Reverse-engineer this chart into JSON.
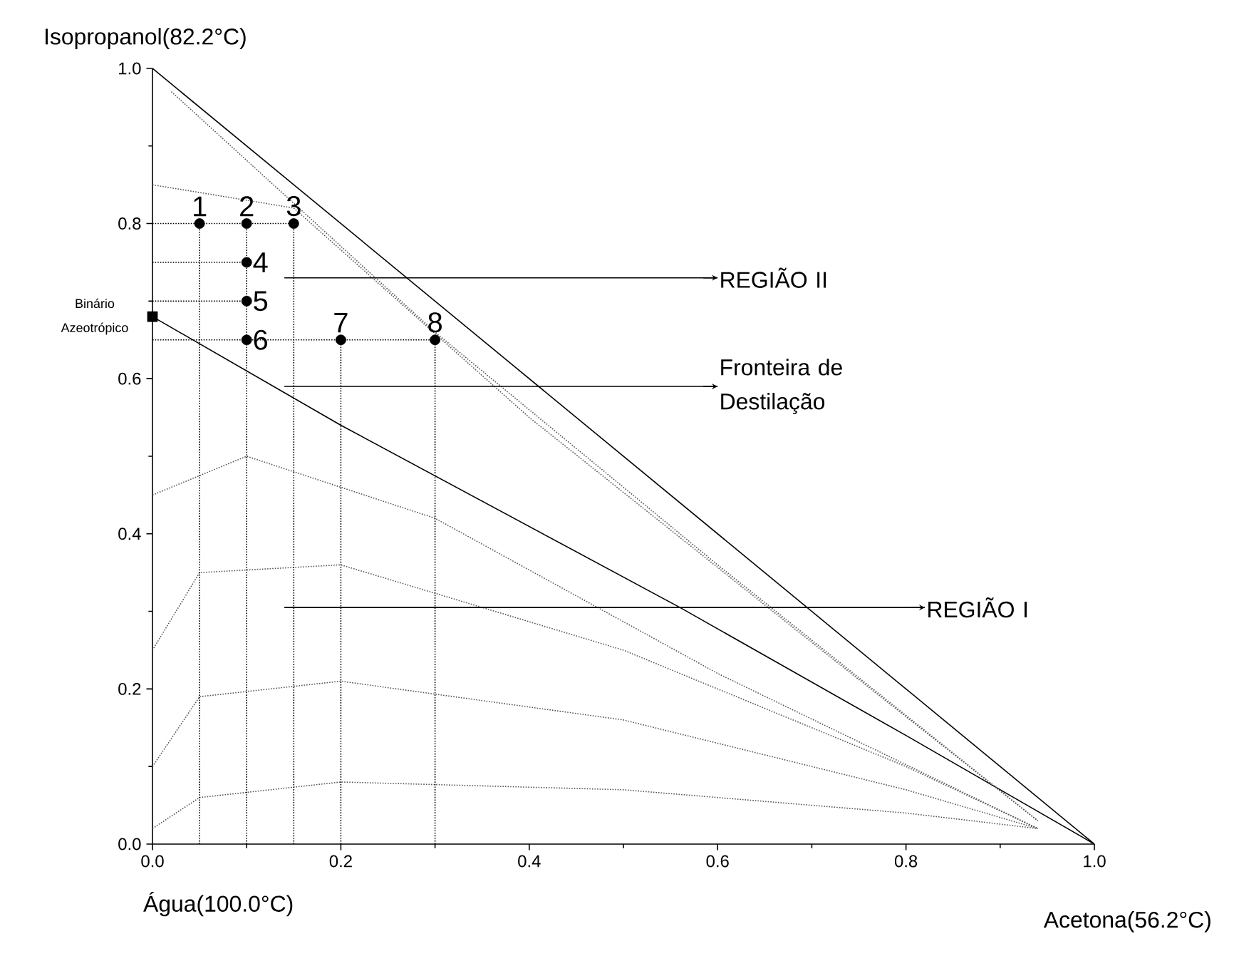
{
  "chart_data": {
    "type": "line",
    "xlabel": "Água(100.0°C)",
    "ylabel": "Isopropanol(82.2°C)",
    "xlim": [
      0,
      1
    ],
    "ylim": [
      0,
      1
    ],
    "xticks": [
      {
        "value": 0,
        "label": "0.0"
      },
      0.2,
      0.4,
      0.6,
      0.8,
      {
        "value": 1,
        "label": "1.0"
      }
    ],
    "yticks": [
      {
        "value": 0,
        "label": "0.0"
      },
      0.2,
      0.4,
      0.6,
      0.8,
      {
        "value": 1,
        "label": "1.0"
      }
    ],
    "series": [
      {
        "color": "#000000",
        "line_style": "solid",
        "x": [
          0,
          1
        ],
        "values": [
          1,
          0
        ]
      },
      {
        "color": "#000000",
        "line_style": "solid",
        "x": [
          0,
          0.2,
          0.56,
          0.8,
          1
        ],
        "values": [
          0.68,
          0.54,
          0.305,
          0.14,
          0
        ]
      },
      {
        "color": "#555555",
        "line_style": "dotted",
        "x": [
          0,
          0.05,
          0.2,
          0.5,
          0.8,
          0.94
        ],
        "values": [
          0.02,
          0.06,
          0.08,
          0.07,
          0.04,
          0.02
        ]
      },
      {
        "color": "#555555",
        "line_style": "dotted",
        "x": [
          0,
          0.05,
          0.2,
          0.5,
          0.8,
          0.94
        ],
        "values": [
          0.1,
          0.19,
          0.21,
          0.16,
          0.07,
          0.02
        ]
      },
      {
        "color": "#555555",
        "line_style": "dotted",
        "x": [
          0,
          0.05,
          0.2,
          0.5,
          0.8,
          0.94
        ],
        "values": [
          0.25,
          0.35,
          0.36,
          0.25,
          0.1,
          0.02
        ]
      },
      {
        "color": "#555555",
        "line_style": "dotted",
        "x": [
          0,
          0.1,
          0.3,
          0.6,
          0.94
        ],
        "values": [
          0.45,
          0.5,
          0.42,
          0.22,
          0.02
        ]
      },
      {
        "color": "#555555",
        "line_style": "dotted",
        "x": [
          0.02,
          0.3,
          0.6,
          0.94
        ],
        "values": [
          0.97,
          0.66,
          0.36,
          0.03
        ]
      },
      {
        "color": "#555555",
        "line_style": "dotted",
        "x": [
          0,
          0.15,
          0.4,
          0.7,
          0.94
        ],
        "values": [
          0.85,
          0.82,
          0.55,
          0.26,
          0.03
        ]
      },
      {
        "color": "#000000",
        "line_style": "dotted",
        "x": [
          0.05,
          0.05
        ],
        "values": [
          0,
          0.8
        ]
      },
      {
        "color": "#000000",
        "line_style": "dotted",
        "x": [
          0.1,
          0.1
        ],
        "values": [
          0,
          0.8
        ]
      },
      {
        "color": "#000000",
        "line_style": "dotted",
        "x": [
          0.15,
          0.15
        ],
        "values": [
          0,
          0.8
        ]
      },
      {
        "color": "#000000",
        "line_style": "dotted",
        "x": [
          0.2,
          0.2
        ],
        "values": [
          0,
          0.65
        ]
      },
      {
        "color": "#000000",
        "line_style": "dotted",
        "x": [
          0.3,
          0.3
        ],
        "values": [
          0,
          0.65
        ]
      },
      {
        "color": "#000000",
        "line_style": "dotted",
        "x": [
          0,
          0.15
        ],
        "values": [
          0.8,
          0.8
        ]
      },
      {
        "color": "#000000",
        "line_style": "dotted",
        "x": [
          0,
          0.1
        ],
        "values": [
          0.75,
          0.75
        ]
      },
      {
        "color": "#000000",
        "line_style": "dotted",
        "x": [
          0,
          0.1
        ],
        "values": [
          0.7,
          0.7
        ]
      },
      {
        "color": "#000000",
        "line_style": "dotted",
        "x": [
          0,
          0.3
        ],
        "values": [
          0.65,
          0.65
        ]
      },
      {
        "color": "#000000",
        "line_style": "solid",
        "x": [
          0.14,
          0.6
        ],
        "values": [
          0.73,
          0.73
        ]
      },
      {
        "color": "#000000",
        "line_style": "solid",
        "x": [
          0.14,
          0.6
        ],
        "values": [
          0.59,
          0.59
        ]
      },
      {
        "color": "#000000",
        "line_style": "solid",
        "x": [
          0.14,
          0.82
        ],
        "values": [
          0.305,
          0.305
        ]
      },
      {
        "type": "scatter",
        "color": "#000000",
        "marker": "circle",
        "x": [
          0.05,
          0.1,
          0.15,
          0.1,
          0.1,
          0.1,
          0.2,
          0.3
        ],
        "values": [
          0.8,
          0.8,
          0.8,
          0.75,
          0.7,
          0.65,
          0.65,
          0.65
        ]
      },
      {
        "type": "scatter",
        "color": "#000000",
        "marker": "square",
        "x": [
          0
        ],
        "values": [
          0.68
        ]
      }
    ],
    "annotations": [
      {
        "text": "1",
        "x": 0.05,
        "y": 0.8
      },
      {
        "text": "2",
        "x": 0.1,
        "y": 0.8
      },
      {
        "text": "3",
        "x": 0.15,
        "y": 0.8
      },
      {
        "text": "4",
        "x": 0.1,
        "y": 0.75
      },
      {
        "text": "5",
        "x": 0.1,
        "y": 0.7
      },
      {
        "text": "6",
        "x": 0.1,
        "y": 0.65
      },
      {
        "text": "7",
        "x": 0.2,
        "y": 0.65
      },
      {
        "text": "8",
        "x": 0.3,
        "y": 0.65
      },
      {
        "text": "Binário Azeotrópico",
        "x": 0,
        "y": 0.68
      },
      {
        "text": "REGIÃO II",
        "x": 0.6,
        "y": 0.73
      },
      {
        "text": "Fronteira de Destilação",
        "x": 0.6,
        "y": 0.59
      },
      {
        "text": "REGIÃO I",
        "x": 0.82,
        "y": 0.305
      },
      "Acetona(56.2°C)"
    ]
  }
}
